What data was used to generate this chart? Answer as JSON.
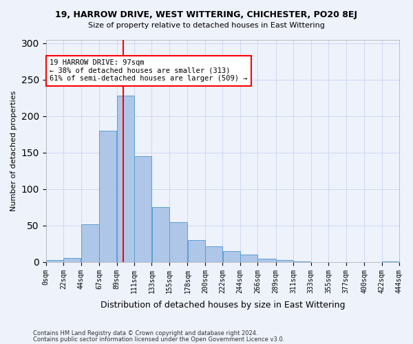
{
  "title1": "19, HARROW DRIVE, WEST WITTERING, CHICHESTER, PO20 8EJ",
  "title2": "Size of property relative to detached houses in East Wittering",
  "xlabel": "Distribution of detached houses by size in East Wittering",
  "ylabel": "Number of detached properties",
  "footer1": "Contains HM Land Registry data © Crown copyright and database right 2024.",
  "footer2": "Contains public sector information licensed under the Open Government Licence v3.0.",
  "bin_labels": [
    "0sqm",
    "22sqm",
    "44sqm",
    "67sqm",
    "89sqm",
    "111sqm",
    "133sqm",
    "155sqm",
    "178sqm",
    "200sqm",
    "222sqm",
    "244sqm",
    "266sqm",
    "289sqm",
    "311sqm",
    "333sqm",
    "355sqm",
    "377sqm",
    "400sqm",
    "422sqm",
    "444sqm"
  ],
  "bar_values": [
    3,
    6,
    52,
    180,
    228,
    145,
    75,
    55,
    30,
    22,
    15,
    10,
    5,
    3,
    1,
    0,
    0,
    0,
    0,
    1
  ],
  "bar_color": "#aec6e8",
  "bar_edgecolor": "#5a9fd4",
  "vline_x": 97,
  "vline_color": "red",
  "annotation_text": "19 HARROW DRIVE: 97sqm\n← 38% of detached houses are smaller (313)\n61% of semi-detached houses are larger (509) →",
  "annotation_box_color": "white",
  "annotation_box_edgecolor": "red",
  "ylim": [
    0,
    305
  ],
  "yticks": [
    0,
    50,
    100,
    150,
    200,
    250,
    300
  ],
  "bin_edges": [
    0,
    22,
    44,
    67,
    89,
    111,
    133,
    155,
    178,
    200,
    222,
    244,
    266,
    289,
    311,
    333,
    355,
    377,
    400,
    422,
    444
  ],
  "background_color": "#eef2fb",
  "plot_background": "#eef2fb",
  "grid_color": "#c8d4f0"
}
